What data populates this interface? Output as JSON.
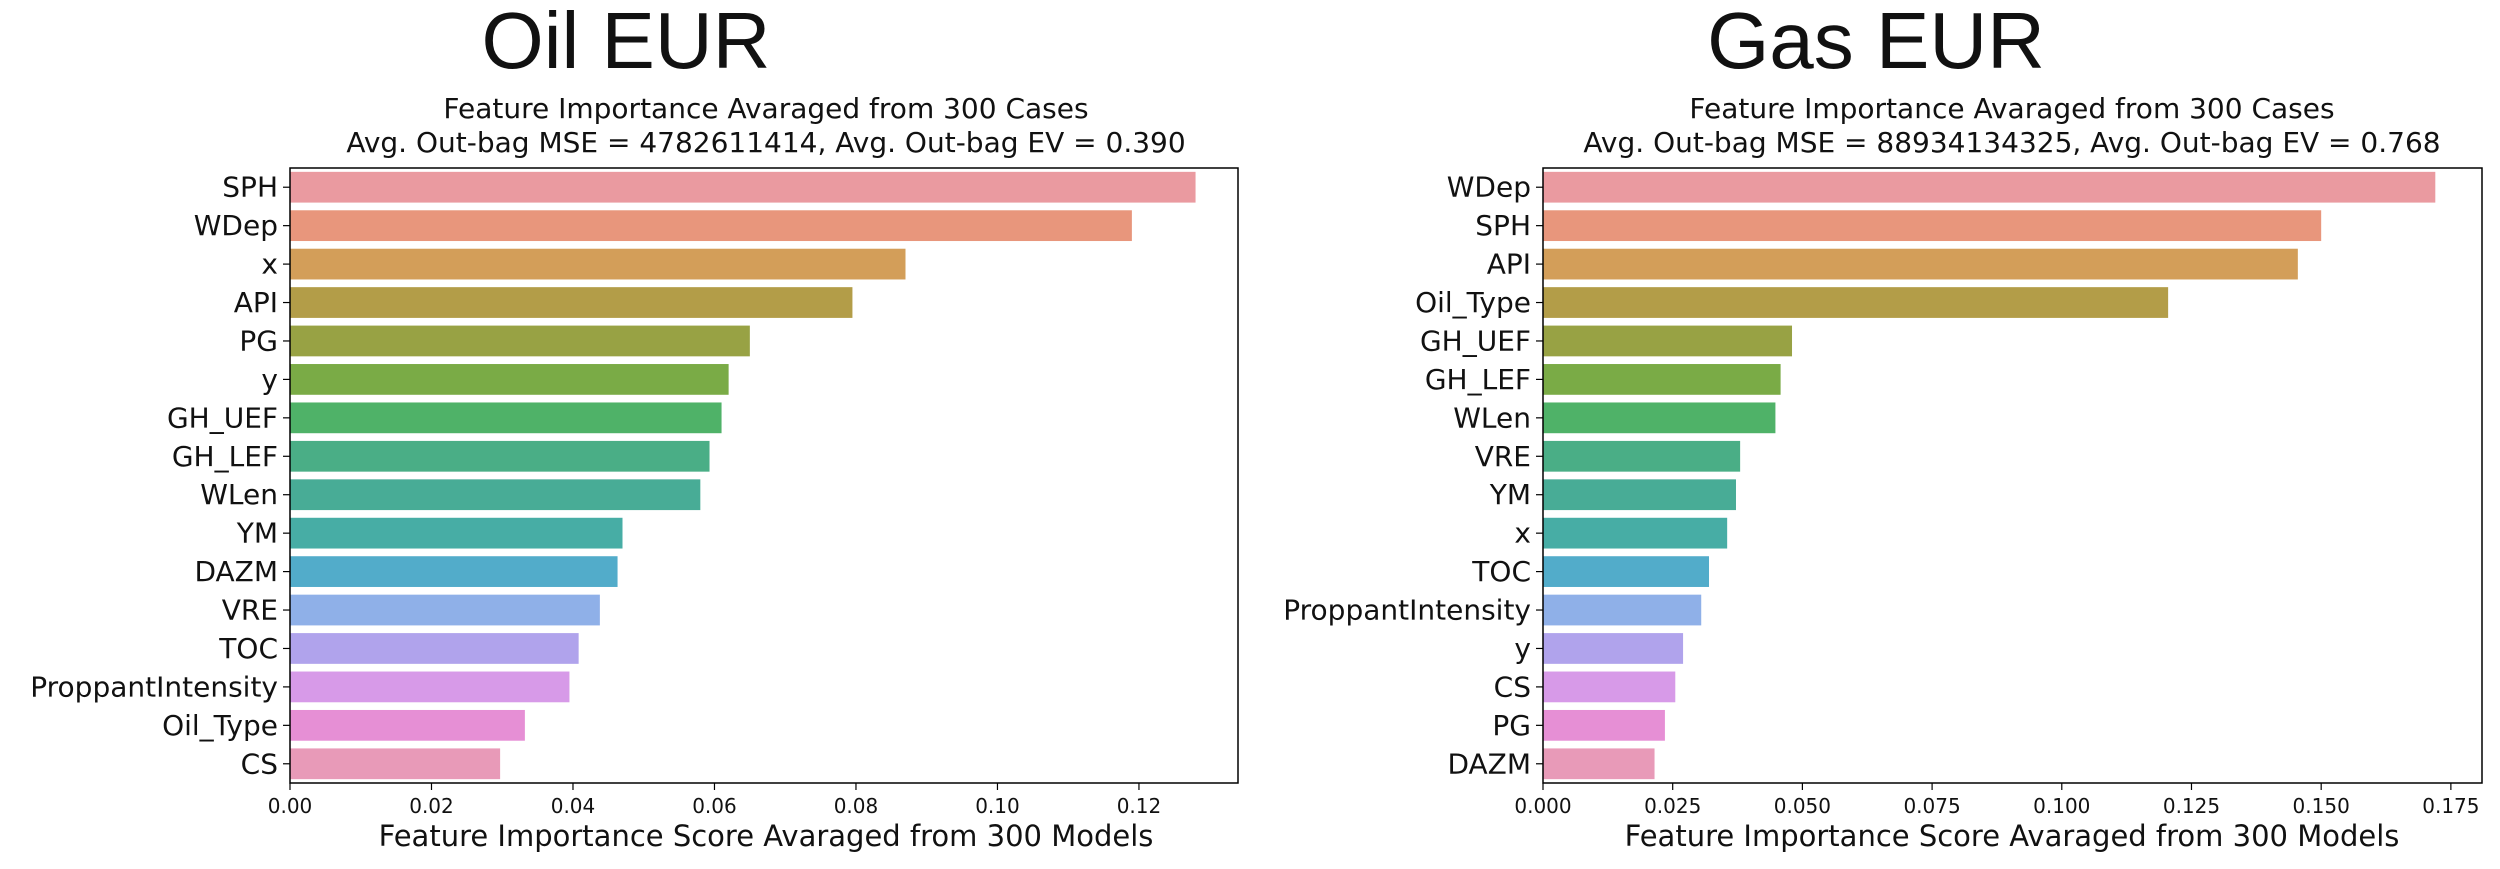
{
  "chart_data": [
    {
      "type": "bar",
      "orientation": "horizontal",
      "panel_title": "Oil EUR",
      "title_line1": "Feature Importance Avaraged from 300 Cases",
      "title_line2": "Avg. Out-bag MSE = 4782611414, Avg. Out-bag EV = 0.390",
      "xlabel": "Feature Importance Score Avaraged from 300 Models",
      "ylabel": "",
      "xlim": [
        0,
        0.134
      ],
      "xticks": [
        0.0,
        0.02,
        0.04,
        0.06,
        0.08,
        0.1,
        0.12
      ],
      "xtick_labels": [
        "0.00",
        "0.02",
        "0.04",
        "0.06",
        "0.08",
        "0.10",
        "0.12"
      ],
      "grid": false,
      "categories": [
        "SPH",
        "WDep",
        "x",
        "API",
        "PG",
        "y",
        "GH_UEF",
        "GH_LEF",
        "WLen",
        "YM",
        "DAZM",
        "VRE",
        "TOC",
        "ProppantIntensity",
        "Oil_Type",
        "CS"
      ],
      "values": [
        0.128,
        0.119,
        0.087,
        0.0795,
        0.065,
        0.062,
        0.061,
        0.0593,
        0.058,
        0.047,
        0.0463,
        0.0438,
        0.0408,
        0.0395,
        0.0332,
        0.0297
      ],
      "colors": [
        "#ea9aa0",
        "#e8967c",
        "#d39e59",
        "#b39d48",
        "#98a244",
        "#7aab46",
        "#4fb268",
        "#4aae86",
        "#48ac96",
        "#47ada5",
        "#52acca",
        "#8fb0e8",
        "#b0a3ec",
        "#d79ae8",
        "#e68fd5",
        "#e89ab8"
      ]
    },
    {
      "type": "bar",
      "orientation": "horizontal",
      "panel_title": "Gas EUR",
      "title_line1": "Feature Importance Avaraged from 300 Cases",
      "title_line2": "Avg. Out-bag MSE = 88934134325, Avg. Out-bag EV = 0.768",
      "xlabel": "Feature Importance Score Avaraged from 300 Models",
      "ylabel": "",
      "xlim": [
        0,
        0.181
      ],
      "xticks": [
        0.0,
        0.025,
        0.05,
        0.075,
        0.1,
        0.125,
        0.15,
        0.175
      ],
      "xtick_labels": [
        "0.000",
        "0.025",
        "0.050",
        "0.075",
        "0.100",
        "0.125",
        "0.150",
        "0.175"
      ],
      "grid": false,
      "categories": [
        "WDep",
        "SPH",
        "API",
        "Oil_Type",
        "GH_UEF",
        "GH_LEF",
        "WLen",
        "VRE",
        "YM",
        "x",
        "TOC",
        "ProppantIntensity",
        "y",
        "CS",
        "PG",
        "DAZM"
      ],
      "values": [
        0.172,
        0.15,
        0.1455,
        0.1205,
        0.048,
        0.0458,
        0.0448,
        0.038,
        0.0372,
        0.0355,
        0.032,
        0.0305,
        0.027,
        0.0255,
        0.0235,
        0.0215
      ],
      "colors": [
        "#ea9aa0",
        "#e8967c",
        "#d39e59",
        "#b39d48",
        "#98a244",
        "#7aab46",
        "#4fb268",
        "#4aae86",
        "#48ac96",
        "#47ada5",
        "#52acca",
        "#8fb0e8",
        "#b0a3ec",
        "#d79ae8",
        "#e68fd5",
        "#e89ab8"
      ]
    }
  ]
}
